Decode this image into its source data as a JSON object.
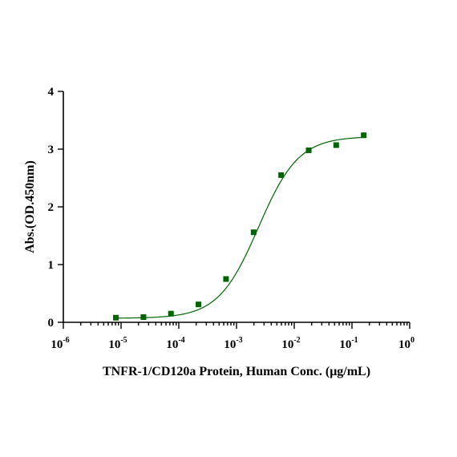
{
  "chart_data": {
    "type": "scatter",
    "xlabel": "TNFR-1/CD120a Protein, Human Conc. (μg/mL)",
    "ylabel": "Abs.(OD.450nm)",
    "xscale": "log",
    "xlim": [
      1e-06,
      1
    ],
    "ylim": [
      0,
      4
    ],
    "yticks": [
      "0",
      "1",
      "2",
      "3",
      "4"
    ],
    "xticks": [
      {
        "base": "10",
        "exp": "-6"
      },
      {
        "base": "10",
        "exp": "-5"
      },
      {
        "base": "10",
        "exp": "-4"
      },
      {
        "base": "10",
        "exp": "-3"
      },
      {
        "base": "10",
        "exp": "-2"
      },
      {
        "base": "10",
        "exp": "-1"
      },
      {
        "base": "10",
        "exp": "0"
      }
    ],
    "grid": false,
    "series": [
      {
        "color": "#006400",
        "marker": "square",
        "x": [
          8.13e-06,
          2.44e-05,
          7.32e-05,
          0.000219,
          0.000658,
          0.00198,
          0.00593,
          0.0178,
          0.0533,
          0.16
        ],
        "y": [
          0.08,
          0.09,
          0.15,
          0.31,
          0.75,
          1.56,
          2.55,
          2.98,
          3.07,
          3.24
        ],
        "fit": {
          "model": "4PL",
          "bottom": 0.07,
          "top": 3.22,
          "ec50": 0.0024,
          "hill": 1.25
        }
      }
    ]
  }
}
